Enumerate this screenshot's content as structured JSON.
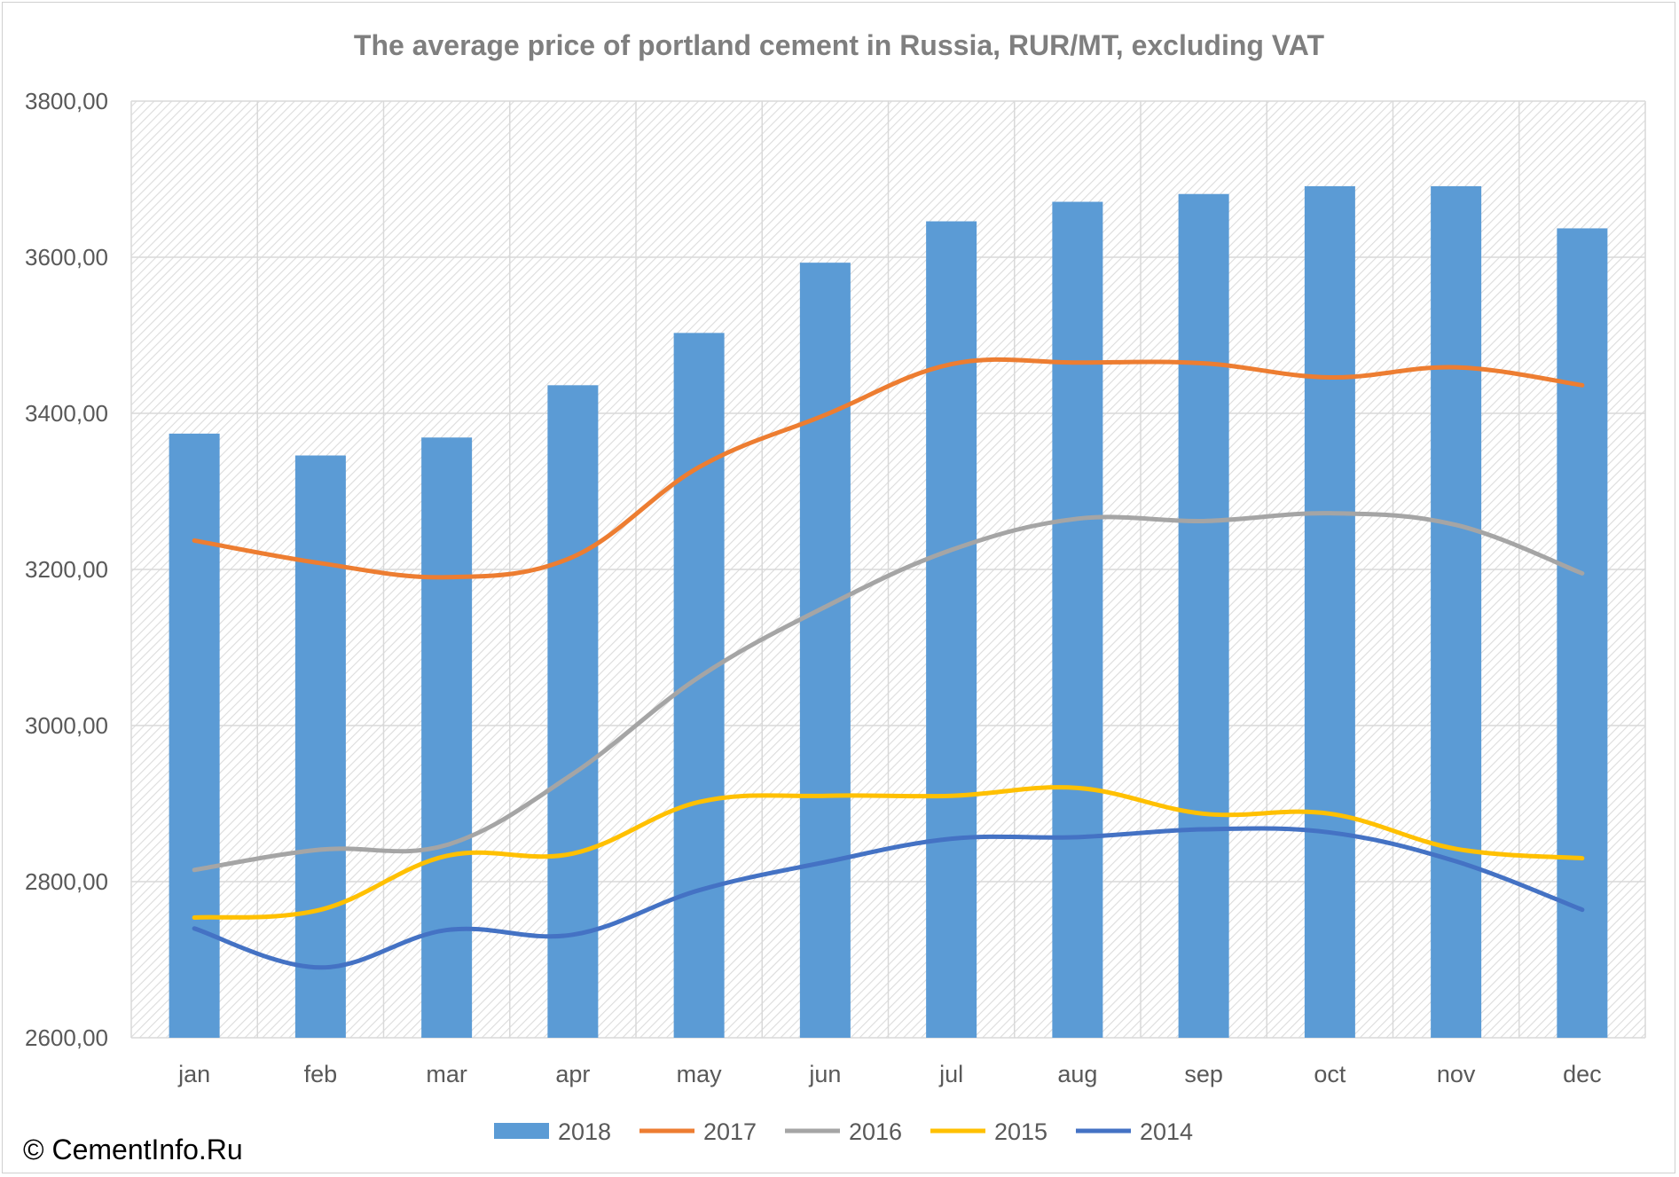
{
  "copyright": "© CementInfo.Ru",
  "chart_data": {
    "type": "bar",
    "title": "The average price of portland cement in Russia, RUR/MT, excluding VAT",
    "xlabel": "",
    "ylabel": "",
    "categories": [
      "jan",
      "feb",
      "mar",
      "apr",
      "may",
      "jun",
      "jul",
      "aug",
      "sep",
      "oct",
      "nov",
      "dec"
    ],
    "ylim": [
      2600,
      3800
    ],
    "yticks": [
      2600,
      2800,
      3000,
      3200,
      3400,
      3600,
      3800
    ],
    "ytick_labels": [
      "2600,00",
      "2800,00",
      "3000,00",
      "3200,00",
      "3400,00",
      "3600,00",
      "3800,00"
    ],
    "grid": true,
    "legend_position": "bottom",
    "series": [
      {
        "name": "2018",
        "kind": "bar",
        "color": "#5b9bd5",
        "values": [
          3374,
          3346,
          3369,
          3436,
          3503,
          3593,
          3646,
          3671,
          3681,
          3691,
          3691,
          3637
        ]
      },
      {
        "name": "2017",
        "kind": "line",
        "color": "#ed7d31",
        "values": [
          3237,
          3208,
          3190,
          3216,
          3331,
          3398,
          3463,
          3465,
          3464,
          3446,
          3459,
          3436
        ]
      },
      {
        "name": "2016",
        "kind": "line",
        "color": "#a5a5a5",
        "values": [
          2815,
          2841,
          2847,
          2938,
          3062,
          3152,
          3225,
          3265,
          3262,
          3272,
          3257,
          3195
        ]
      },
      {
        "name": "2015",
        "kind": "line",
        "color": "#ffc000",
        "values": [
          2754,
          2764,
          2833,
          2836,
          2902,
          2910,
          2910,
          2920,
          2887,
          2887,
          2842,
          2830
        ]
      },
      {
        "name": "2014",
        "kind": "line",
        "color": "#4472c4",
        "values": [
          2740,
          2690,
          2738,
          2732,
          2789,
          2825,
          2855,
          2857,
          2867,
          2863,
          2826,
          2764
        ]
      }
    ]
  }
}
